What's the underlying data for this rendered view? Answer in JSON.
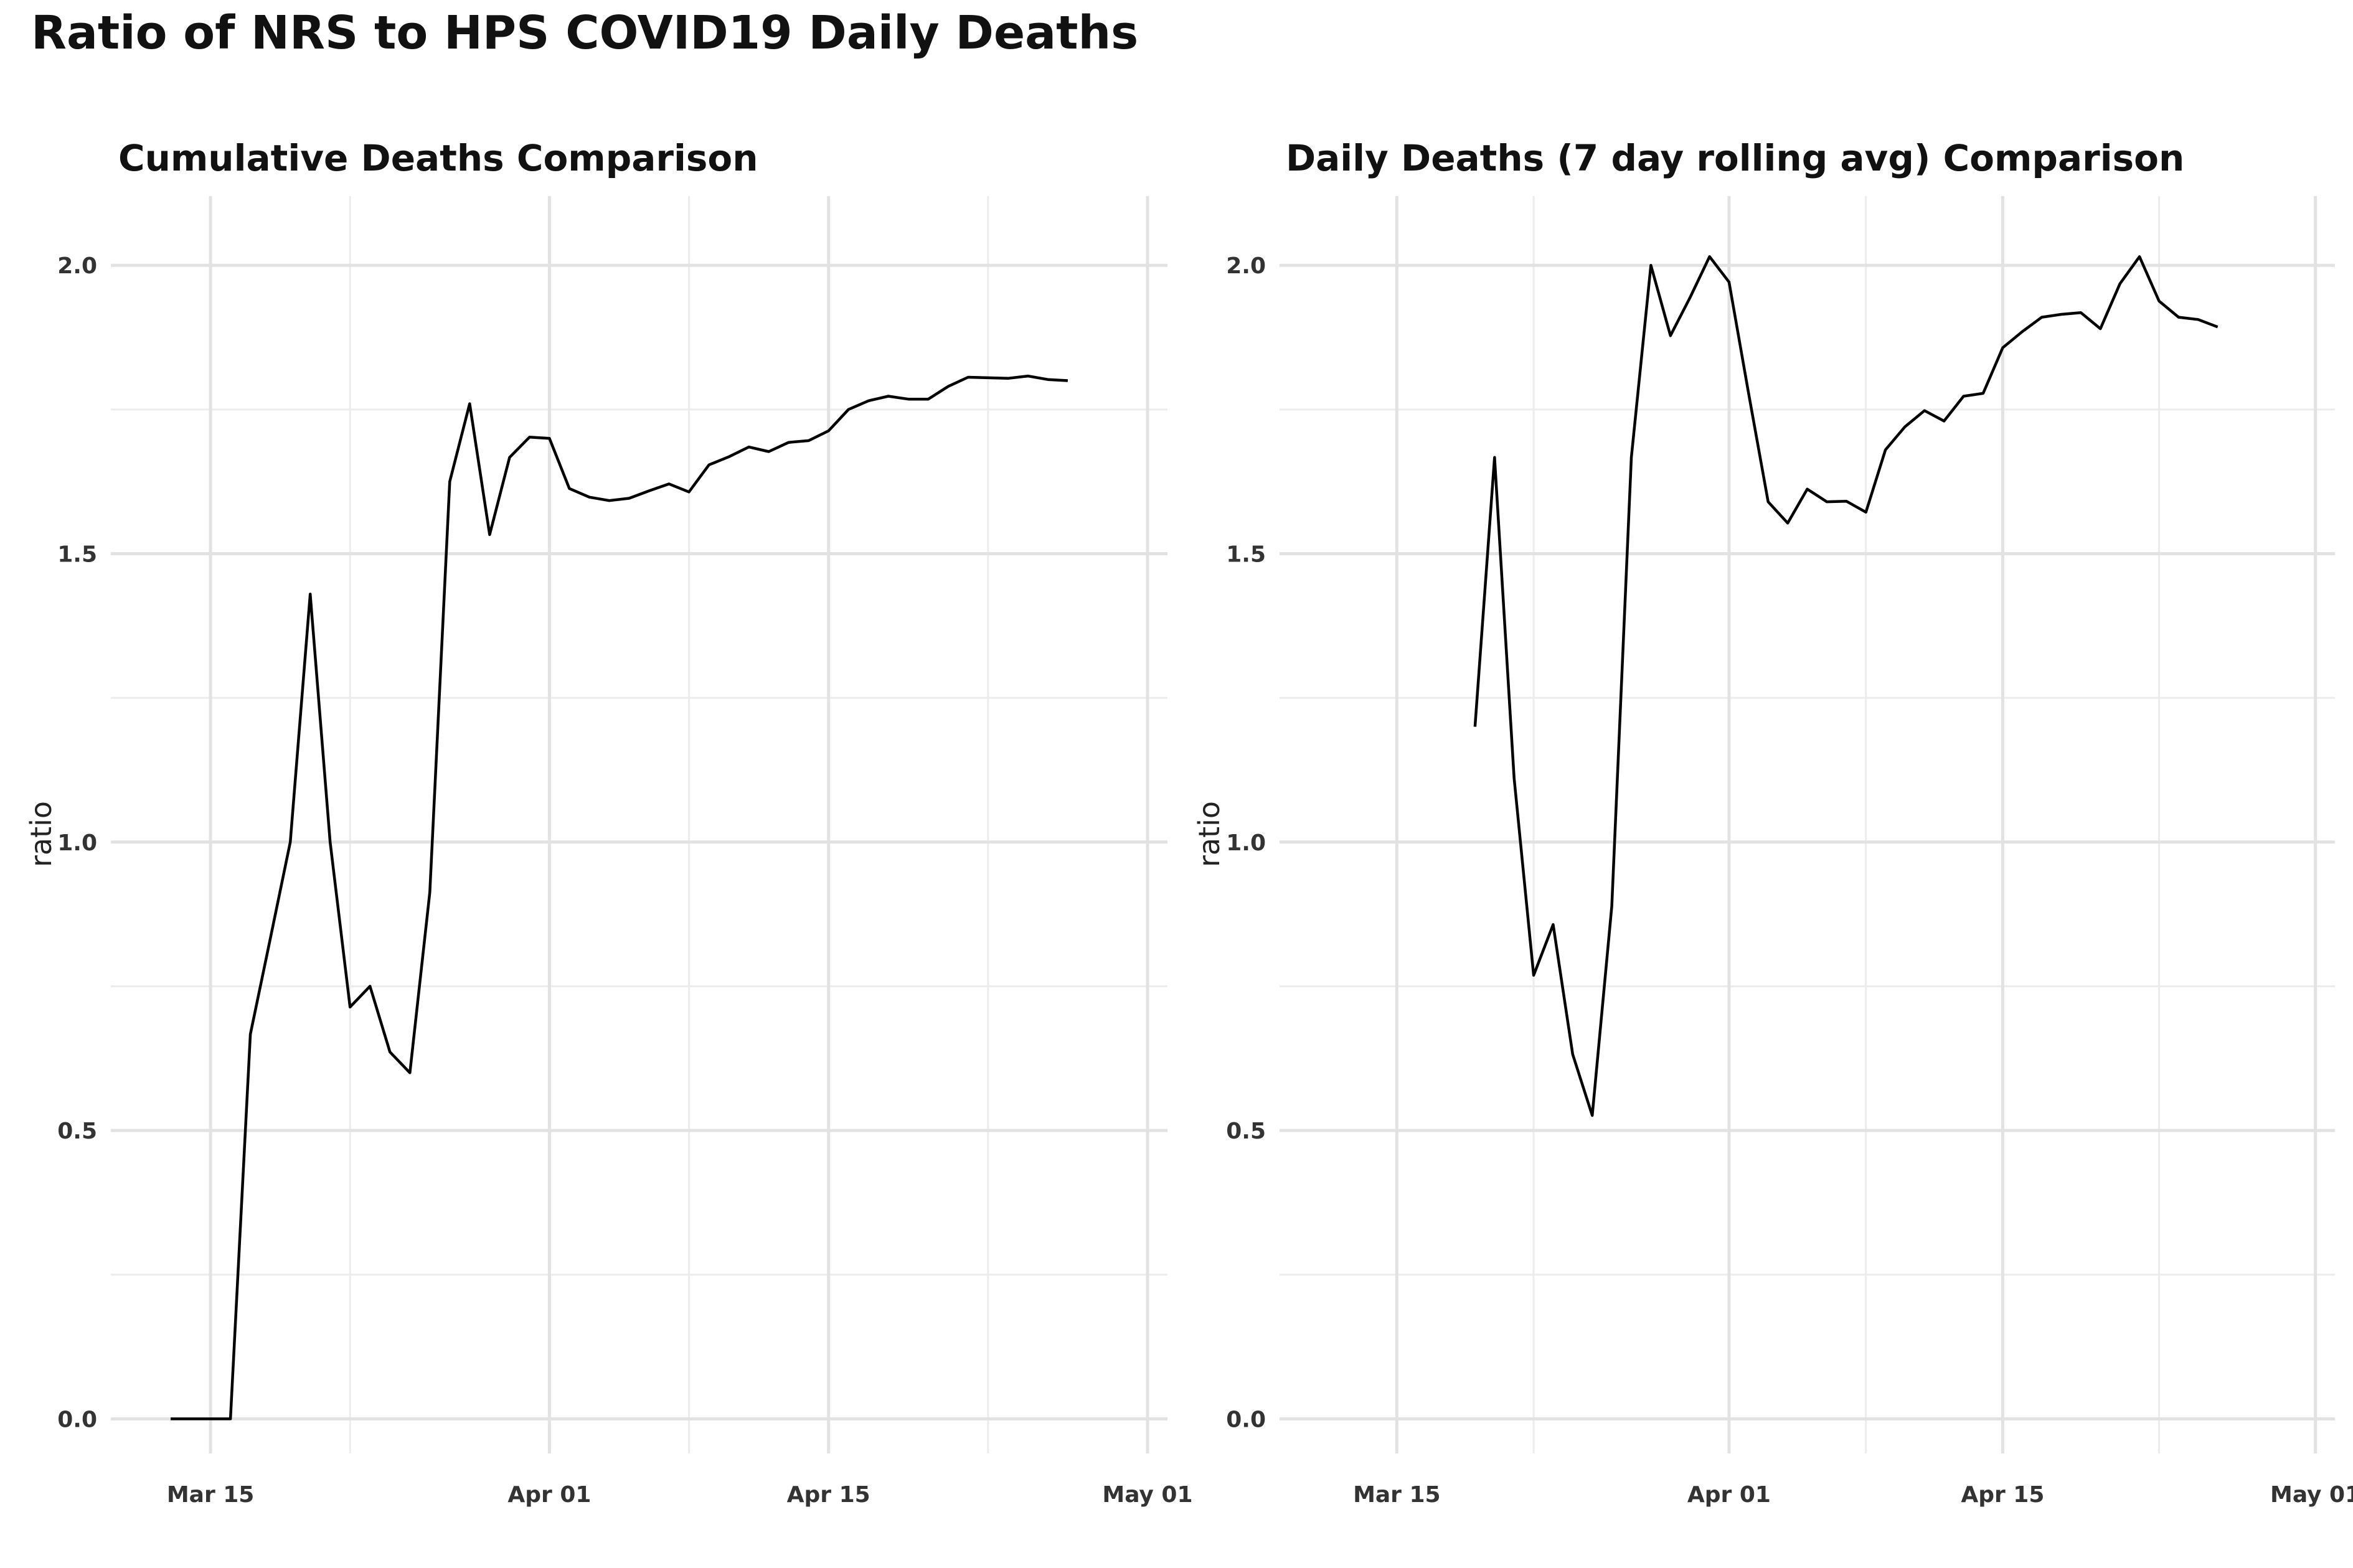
{
  "title": "Ratio of NRS to HPS COVID19 Daily Deaths",
  "chart_data": [
    {
      "type": "line",
      "title": "Cumulative Deaths Comparison",
      "xlabel": "",
      "ylabel": "ratio",
      "x_tick_labels": [
        "Mar 15",
        "Apr 01",
        "Apr 15",
        "May 01"
      ],
      "y_tick_labels": [
        "0.0",
        "0.5",
        "1.0",
        "1.5",
        "2.0"
      ],
      "ylim": [
        -0.06,
        2.12
      ],
      "grid": true,
      "series": [
        {
          "x": [
            "2020-03-13",
            "2020-03-14",
            "2020-03-15",
            "2020-03-16",
            "2020-03-17",
            "2020-03-18",
            "2020-03-19",
            "2020-03-20",
            "2020-03-21",
            "2020-03-22",
            "2020-03-23",
            "2020-03-24",
            "2020-03-25",
            "2020-03-26",
            "2020-03-27",
            "2020-03-28",
            "2020-03-29",
            "2020-03-30",
            "2020-03-31",
            "2020-04-01",
            "2020-04-02",
            "2020-04-03",
            "2020-04-04",
            "2020-04-05",
            "2020-04-06",
            "2020-04-07",
            "2020-04-08",
            "2020-04-09",
            "2020-04-10",
            "2020-04-11",
            "2020-04-12",
            "2020-04-13",
            "2020-04-14",
            "2020-04-15",
            "2020-04-16",
            "2020-04-17",
            "2020-04-18",
            "2020-04-19",
            "2020-04-20",
            "2020-04-21",
            "2020-04-22",
            "2020-04-23",
            "2020-04-24",
            "2020-04-25",
            "2020-04-26",
            "2020-04-27"
          ],
          "values": [
            0.0,
            0.0,
            0.0,
            0.0,
            0.667,
            0.833,
            1.0,
            1.43,
            1.0,
            0.714,
            0.75,
            0.636,
            0.6,
            0.913,
            1.625,
            1.76,
            1.533,
            1.667,
            1.702,
            1.7,
            1.613,
            1.598,
            1.592,
            1.596,
            1.609,
            1.621,
            1.607,
            1.654,
            1.668,
            1.685,
            1.677,
            1.693,
            1.696,
            1.713,
            1.75,
            1.765,
            1.773,
            1.768,
            1.768,
            1.79,
            1.806,
            1.805,
            1.804,
            1.808,
            1.802,
            1.8
          ]
        }
      ]
    },
    {
      "type": "line",
      "title": "Daily Deaths (7 day rolling avg) Comparison",
      "xlabel": "",
      "ylabel": "ratio",
      "x_tick_labels": [
        "Mar 15",
        "Apr 01",
        "Apr 15",
        "May 01"
      ],
      "y_tick_labels": [
        "0.0",
        "0.5",
        "1.0",
        "1.5",
        "2.0"
      ],
      "ylim": [
        -0.06,
        2.12
      ],
      "grid": true,
      "series": [
        {
          "x": [
            "2020-03-19",
            "2020-03-20",
            "2020-03-21",
            "2020-03-22",
            "2020-03-23",
            "2020-03-24",
            "2020-03-25",
            "2020-03-26",
            "2020-03-27",
            "2020-03-28",
            "2020-03-29",
            "2020-03-30",
            "2020-03-31",
            "2020-04-01",
            "2020-04-02",
            "2020-04-03",
            "2020-04-04",
            "2020-04-05",
            "2020-04-06",
            "2020-04-07",
            "2020-04-08",
            "2020-04-09",
            "2020-04-10",
            "2020-04-11",
            "2020-04-12",
            "2020-04-13",
            "2020-04-14",
            "2020-04-15",
            "2020-04-16",
            "2020-04-17",
            "2020-04-18",
            "2020-04-19",
            "2020-04-20",
            "2020-04-21",
            "2020-04-22",
            "2020-04-23",
            "2020-04-24",
            "2020-04-25",
            "2020-04-26"
          ],
          "values": [
            1.2,
            1.667,
            1.111,
            0.769,
            0.857,
            0.632,
            0.526,
            0.889,
            1.667,
            2.0,
            1.878,
            1.944,
            2.015,
            1.971,
            1.778,
            1.59,
            1.553,
            1.612,
            1.59,
            1.591,
            1.572,
            1.68,
            1.72,
            1.748,
            1.73,
            1.773,
            1.778,
            1.857,
            1.885,
            1.91,
            1.915,
            1.918,
            1.89,
            1.968,
            2.015,
            1.938,
            1.91,
            1.906,
            1.893
          ]
        }
      ]
    }
  ]
}
